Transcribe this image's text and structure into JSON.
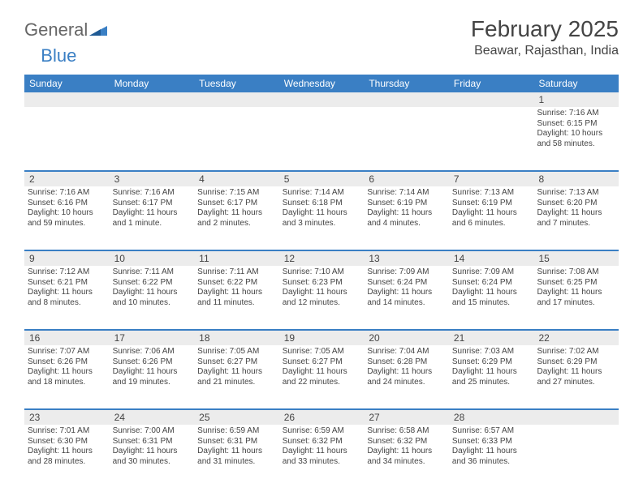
{
  "brand": {
    "general": "General",
    "blue": "Blue"
  },
  "title": "February 2025",
  "location": "Beawar, Rajasthan, India",
  "colors": {
    "header_bg": "#3a7fc4",
    "header_text": "#ffffff",
    "daynum_bg": "#ececec",
    "text": "#444444",
    "page_bg": "#ffffff",
    "week_divider": "#3a7fc4"
  },
  "fonts": {
    "title_size": 28,
    "location_size": 16,
    "dayheader_size": 12,
    "daynum_size": 12,
    "cell_size": 10
  },
  "dayheaders": [
    "Sunday",
    "Monday",
    "Tuesday",
    "Wednesday",
    "Thursday",
    "Friday",
    "Saturday"
  ],
  "weeks": [
    [
      {
        "n": "",
        "sr": "",
        "ss": "",
        "dl1": "",
        "dl2": ""
      },
      {
        "n": "",
        "sr": "",
        "ss": "",
        "dl1": "",
        "dl2": ""
      },
      {
        "n": "",
        "sr": "",
        "ss": "",
        "dl1": "",
        "dl2": ""
      },
      {
        "n": "",
        "sr": "",
        "ss": "",
        "dl1": "",
        "dl2": ""
      },
      {
        "n": "",
        "sr": "",
        "ss": "",
        "dl1": "",
        "dl2": ""
      },
      {
        "n": "",
        "sr": "",
        "ss": "",
        "dl1": "",
        "dl2": ""
      },
      {
        "n": "1",
        "sr": "Sunrise: 7:16 AM",
        "ss": "Sunset: 6:15 PM",
        "dl1": "Daylight: 10 hours",
        "dl2": "and 58 minutes."
      }
    ],
    [
      {
        "n": "2",
        "sr": "Sunrise: 7:16 AM",
        "ss": "Sunset: 6:16 PM",
        "dl1": "Daylight: 10 hours",
        "dl2": "and 59 minutes."
      },
      {
        "n": "3",
        "sr": "Sunrise: 7:16 AM",
        "ss": "Sunset: 6:17 PM",
        "dl1": "Daylight: 11 hours",
        "dl2": "and 1 minute."
      },
      {
        "n": "4",
        "sr": "Sunrise: 7:15 AM",
        "ss": "Sunset: 6:17 PM",
        "dl1": "Daylight: 11 hours",
        "dl2": "and 2 minutes."
      },
      {
        "n": "5",
        "sr": "Sunrise: 7:14 AM",
        "ss": "Sunset: 6:18 PM",
        "dl1": "Daylight: 11 hours",
        "dl2": "and 3 minutes."
      },
      {
        "n": "6",
        "sr": "Sunrise: 7:14 AM",
        "ss": "Sunset: 6:19 PM",
        "dl1": "Daylight: 11 hours",
        "dl2": "and 4 minutes."
      },
      {
        "n": "7",
        "sr": "Sunrise: 7:13 AM",
        "ss": "Sunset: 6:19 PM",
        "dl1": "Daylight: 11 hours",
        "dl2": "and 6 minutes."
      },
      {
        "n": "8",
        "sr": "Sunrise: 7:13 AM",
        "ss": "Sunset: 6:20 PM",
        "dl1": "Daylight: 11 hours",
        "dl2": "and 7 minutes."
      }
    ],
    [
      {
        "n": "9",
        "sr": "Sunrise: 7:12 AM",
        "ss": "Sunset: 6:21 PM",
        "dl1": "Daylight: 11 hours",
        "dl2": "and 8 minutes."
      },
      {
        "n": "10",
        "sr": "Sunrise: 7:11 AM",
        "ss": "Sunset: 6:22 PM",
        "dl1": "Daylight: 11 hours",
        "dl2": "and 10 minutes."
      },
      {
        "n": "11",
        "sr": "Sunrise: 7:11 AM",
        "ss": "Sunset: 6:22 PM",
        "dl1": "Daylight: 11 hours",
        "dl2": "and 11 minutes."
      },
      {
        "n": "12",
        "sr": "Sunrise: 7:10 AM",
        "ss": "Sunset: 6:23 PM",
        "dl1": "Daylight: 11 hours",
        "dl2": "and 12 minutes."
      },
      {
        "n": "13",
        "sr": "Sunrise: 7:09 AM",
        "ss": "Sunset: 6:24 PM",
        "dl1": "Daylight: 11 hours",
        "dl2": "and 14 minutes."
      },
      {
        "n": "14",
        "sr": "Sunrise: 7:09 AM",
        "ss": "Sunset: 6:24 PM",
        "dl1": "Daylight: 11 hours",
        "dl2": "and 15 minutes."
      },
      {
        "n": "15",
        "sr": "Sunrise: 7:08 AM",
        "ss": "Sunset: 6:25 PM",
        "dl1": "Daylight: 11 hours",
        "dl2": "and 17 minutes."
      }
    ],
    [
      {
        "n": "16",
        "sr": "Sunrise: 7:07 AM",
        "ss": "Sunset: 6:26 PM",
        "dl1": "Daylight: 11 hours",
        "dl2": "and 18 minutes."
      },
      {
        "n": "17",
        "sr": "Sunrise: 7:06 AM",
        "ss": "Sunset: 6:26 PM",
        "dl1": "Daylight: 11 hours",
        "dl2": "and 19 minutes."
      },
      {
        "n": "18",
        "sr": "Sunrise: 7:05 AM",
        "ss": "Sunset: 6:27 PM",
        "dl1": "Daylight: 11 hours",
        "dl2": "and 21 minutes."
      },
      {
        "n": "19",
        "sr": "Sunrise: 7:05 AM",
        "ss": "Sunset: 6:27 PM",
        "dl1": "Daylight: 11 hours",
        "dl2": "and 22 minutes."
      },
      {
        "n": "20",
        "sr": "Sunrise: 7:04 AM",
        "ss": "Sunset: 6:28 PM",
        "dl1": "Daylight: 11 hours",
        "dl2": "and 24 minutes."
      },
      {
        "n": "21",
        "sr": "Sunrise: 7:03 AM",
        "ss": "Sunset: 6:29 PM",
        "dl1": "Daylight: 11 hours",
        "dl2": "and 25 minutes."
      },
      {
        "n": "22",
        "sr": "Sunrise: 7:02 AM",
        "ss": "Sunset: 6:29 PM",
        "dl1": "Daylight: 11 hours",
        "dl2": "and 27 minutes."
      }
    ],
    [
      {
        "n": "23",
        "sr": "Sunrise: 7:01 AM",
        "ss": "Sunset: 6:30 PM",
        "dl1": "Daylight: 11 hours",
        "dl2": "and 28 minutes."
      },
      {
        "n": "24",
        "sr": "Sunrise: 7:00 AM",
        "ss": "Sunset: 6:31 PM",
        "dl1": "Daylight: 11 hours",
        "dl2": "and 30 minutes."
      },
      {
        "n": "25",
        "sr": "Sunrise: 6:59 AM",
        "ss": "Sunset: 6:31 PM",
        "dl1": "Daylight: 11 hours",
        "dl2": "and 31 minutes."
      },
      {
        "n": "26",
        "sr": "Sunrise: 6:59 AM",
        "ss": "Sunset: 6:32 PM",
        "dl1": "Daylight: 11 hours",
        "dl2": "and 33 minutes."
      },
      {
        "n": "27",
        "sr": "Sunrise: 6:58 AM",
        "ss": "Sunset: 6:32 PM",
        "dl1": "Daylight: 11 hours",
        "dl2": "and 34 minutes."
      },
      {
        "n": "28",
        "sr": "Sunrise: 6:57 AM",
        "ss": "Sunset: 6:33 PM",
        "dl1": "Daylight: 11 hours",
        "dl2": "and 36 minutes."
      },
      {
        "n": "",
        "sr": "",
        "ss": "",
        "dl1": "",
        "dl2": ""
      }
    ]
  ]
}
